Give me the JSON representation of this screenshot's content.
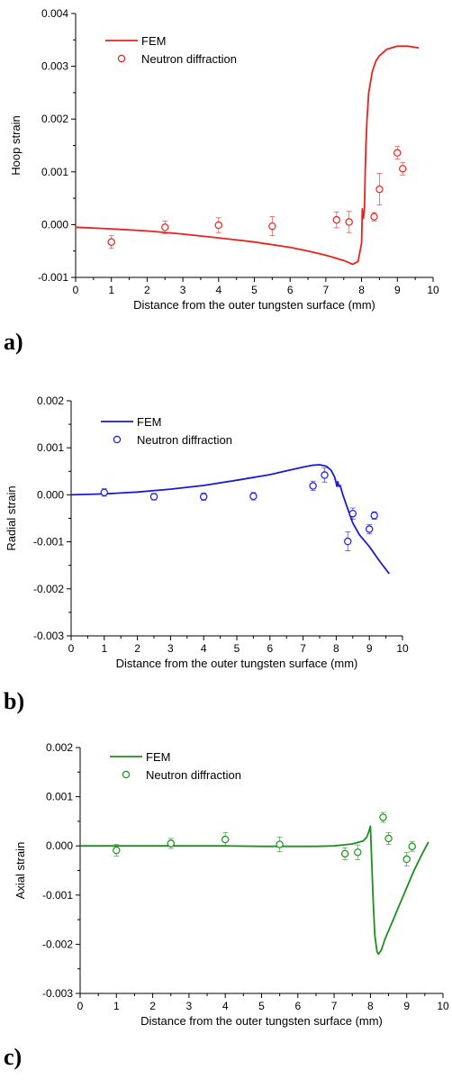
{
  "chart_data": [
    {
      "type": "line",
      "panel_label": "a)",
      "xlabel": "Distance from the outer tungsten surface (mm)",
      "ylabel": "Hoop strain",
      "xlim": [
        0,
        10
      ],
      "ylim": [
        -0.001,
        0.004
      ],
      "xticks": [
        "0",
        "1",
        "2",
        "3",
        "4",
        "5",
        "6",
        "7",
        "8",
        "9",
        "10"
      ],
      "yticks": [
        "-0.001",
        "0.000",
        "0.001",
        "0.002",
        "0.003",
        "0.004"
      ],
      "ytick_values": [
        -0.001,
        0,
        0.001,
        0.002,
        0.003,
        0.004
      ],
      "legend_position": "top-left",
      "color": "#e8221d",
      "series": [
        {
          "name": "FEM",
          "kind": "line",
          "x": [
            0,
            1,
            2,
            3,
            4,
            5,
            6,
            6.5,
            7,
            7.5,
            7.75,
            7.9,
            8.0,
            8.02,
            8.05,
            8.08,
            8.1,
            8.12,
            8.15,
            8.2,
            8.3,
            8.4,
            8.5,
            8.7,
            9.0,
            9.3,
            9.6
          ],
          "y": [
            -5e-05,
            -8e-05,
            -0.00012,
            -0.00018,
            -0.00025,
            -0.00033,
            -0.00043,
            -0.0005,
            -0.00058,
            -0.00068,
            -0.00075,
            -0.0007,
            -0.00035,
            0.0003,
            0.00012,
            0.0003,
            0.001,
            0.0015,
            0.002,
            0.0025,
            0.0029,
            0.0031,
            0.0032,
            0.00332,
            0.00338,
            0.00338,
            0.00335
          ]
        },
        {
          "name": "Neutron diffraction",
          "kind": "scatter",
          "x": [
            1.0,
            2.5,
            4.0,
            5.5,
            7.3,
            7.65,
            8.35,
            8.5,
            9.0,
            9.15
          ],
          "y": [
            -0.00033,
            -5e-05,
            -1e-05,
            -3e-05,
            9e-05,
            5e-05,
            0.00015,
            0.00067,
            0.00136,
            0.00106
          ],
          "err": [
            0.00012,
            0.00012,
            0.00014,
            0.00018,
            0.00015,
            0.0002,
            8e-05,
            0.0003,
            0.00012,
            0.00012
          ]
        }
      ]
    },
    {
      "type": "line",
      "panel_label": "b)",
      "xlabel": "Distance from the outer tungsten surface (mm)",
      "ylabel": "Radial strain",
      "xlim": [
        0,
        10
      ],
      "ylim": [
        -0.003,
        0.002
      ],
      "xticks": [
        "0",
        "1",
        "2",
        "3",
        "4",
        "5",
        "6",
        "7",
        "8",
        "9",
        "10"
      ],
      "yticks": [
        "-0.003",
        "-0.002",
        "-0.001",
        "0.000",
        "0.001",
        "0.002"
      ],
      "ytick_values": [
        -0.003,
        -0.002,
        -0.001,
        0,
        0.001,
        0.002
      ],
      "legend_position": "top-left",
      "color": "#1a1ad6",
      "series": [
        {
          "name": "FEM",
          "kind": "line",
          "x": [
            0,
            1,
            2,
            3,
            4,
            5,
            6,
            6.5,
            7,
            7.3,
            7.5,
            7.7,
            7.85,
            7.95,
            8.0,
            8.02,
            8.05,
            8.08,
            8.12,
            8.2,
            8.3,
            8.5,
            8.7,
            9.0,
            9.3,
            9.6
          ],
          "y": [
            0.0,
            2e-05,
            6e-05,
            0.00012,
            0.0002,
            0.00031,
            0.00043,
            0.00051,
            0.00059,
            0.00063,
            0.00064,
            0.00061,
            0.00052,
            0.00038,
            0.00025,
            0.00018,
            0.00028,
            0.00018,
            0.0002,
            0.0,
            -0.0002,
            -0.0006,
            -0.00085,
            -0.0011,
            -0.0014,
            -0.00168
          ]
        },
        {
          "name": "Neutron diffraction",
          "kind": "scatter",
          "x": [
            1.0,
            2.5,
            4.0,
            5.5,
            7.3,
            7.65,
            8.35,
            8.5,
            9.0,
            9.15
          ],
          "y": [
            5e-05,
            -4e-05,
            -4e-05,
            -3e-05,
            0.00019,
            0.00042,
            -0.00099,
            -0.0004,
            -0.00073,
            -0.00044
          ],
          "err": [
            8e-05,
            7e-05,
            8e-05,
            8e-05,
            0.0001,
            0.00015,
            0.0002,
            0.00012,
            0.0001,
            8e-05
          ]
        }
      ]
    },
    {
      "type": "line",
      "panel_label": "c)",
      "xlabel": "Distance from the outer tungsten surface (mm)",
      "ylabel": "Axial strain",
      "xlim": [
        0,
        10
      ],
      "ylim": [
        -0.003,
        0.002
      ],
      "xticks": [
        "0",
        "1",
        "2",
        "3",
        "4",
        "5",
        "6",
        "7",
        "8",
        "9",
        "10"
      ],
      "yticks": [
        "-0.003",
        "-0.002",
        "-0.001",
        "0.000",
        "0.001",
        "0.002"
      ],
      "ytick_values": [
        -0.003,
        -0.002,
        -0.001,
        0,
        0.001,
        0.002
      ],
      "legend_position": "top-left",
      "color": "#1d8f1d",
      "series": [
        {
          "name": "FEM",
          "kind": "line",
          "x": [
            0,
            1,
            2,
            3,
            4,
            5,
            6,
            6.5,
            7,
            7.5,
            7.8,
            7.9,
            7.95,
            8.0,
            8.03,
            8.07,
            8.12,
            8.18,
            8.22,
            8.3,
            8.4,
            8.6,
            8.8,
            9.0,
            9.2,
            9.4,
            9.6
          ],
          "y": [
            0.0,
            0.0,
            0.0,
            0.0,
            0.0,
            -1e-05,
            -1e-05,
            -1e-05,
            0.0,
            4e-05,
            0.0001,
            0.00018,
            0.00028,
            0.0004,
            -0.0002,
            -0.001,
            -0.0018,
            -0.00215,
            -0.0022,
            -0.00212,
            -0.0019,
            -0.00155,
            -0.0012,
            -0.00085,
            -0.0005,
            -0.0002,
            8e-05
          ]
        },
        {
          "name": "Neutron diffraction",
          "kind": "scatter",
          "x": [
            1.0,
            2.5,
            4.0,
            5.5,
            7.3,
            7.65,
            8.35,
            8.5,
            9.0,
            9.15
          ],
          "y": [
            -9e-05,
            5e-05,
            0.00013,
            3e-05,
            -0.00016,
            -0.00013,
            0.00058,
            0.00015,
            -0.00027,
            -1e-05
          ],
          "err": [
            0.00012,
            0.0001,
            0.00014,
            0.00015,
            0.00012,
            0.00015,
            0.0001,
            0.00012,
            0.00014,
            0.0001
          ]
        }
      ]
    }
  ]
}
